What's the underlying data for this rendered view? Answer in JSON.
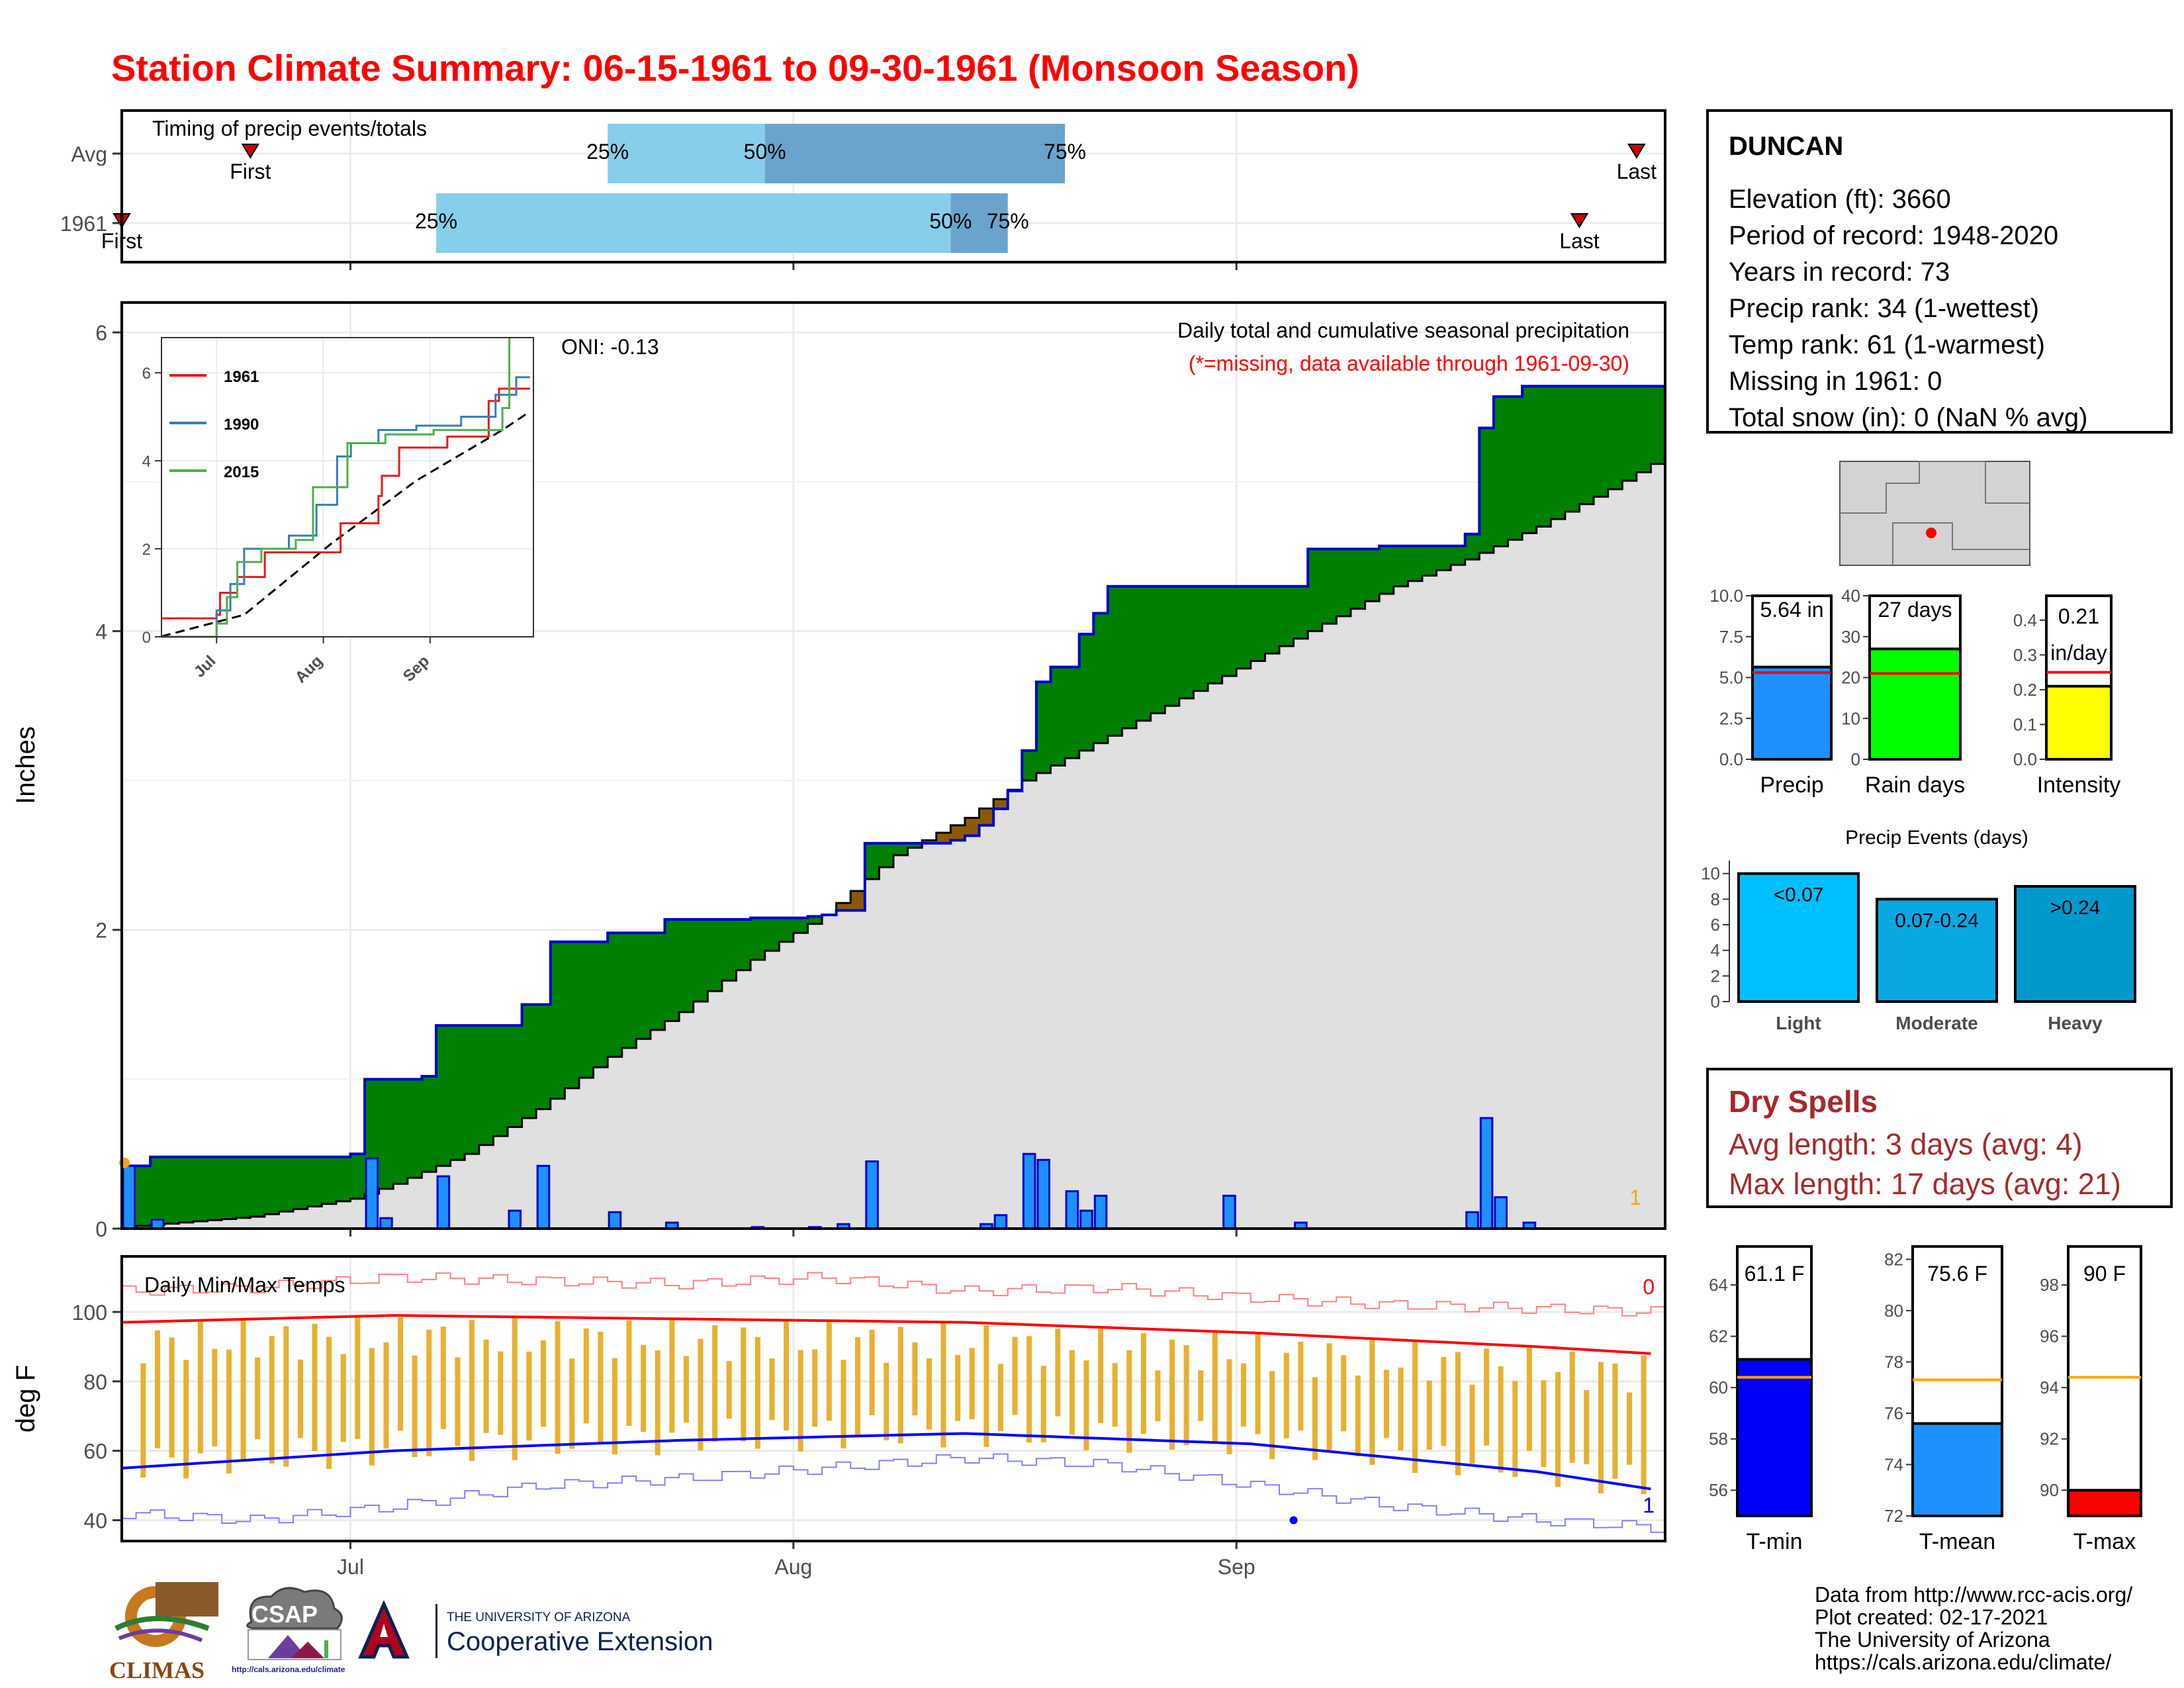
{
  "title": "Station Climate Summary: 06-15-1961 to 09-30-1961 (Monsoon Season)",
  "timing": {
    "label": "Timing of precip events/totals",
    "rows": [
      {
        "name": "Avg",
        "first": "First",
        "last": "Last",
        "p25": "25%",
        "p50": "50%",
        "p75": "75%"
      },
      {
        "name": "1961",
        "first": "First",
        "last": "Last",
        "p25": "25%",
        "p50": "50%",
        "p75": "75%"
      }
    ]
  },
  "main_plot": {
    "ylabel": "Inches",
    "title": "Daily total and cumulative seasonal precipitation",
    "subtitle": "(*=missing, data available through 1961-09-30)",
    "oni": "ONI: -0.13",
    "missing_count": "1"
  },
  "temp_plot": {
    "ylabel": "deg F",
    "label": "Daily Min/Max Temps",
    "count_top": "0",
    "count_bottom": "1"
  },
  "station": {
    "name": "DUNCAN",
    "lines": [
      "Elevation (ft): 3660",
      "Period of record: 1948-2020",
      "Years in record: 73",
      "Precip rank: 34 (1-wettest)",
      "Temp rank: 61 (1-warmest)",
      "Missing in 1961: 0",
      "Total snow (in): 0 (NaN % avg)"
    ]
  },
  "dry_spells": {
    "title": "Dry Spells",
    "avg_length": "Avg length: 3 days (avg: 4)",
    "max_length": "Max length: 17 days (avg: 21)"
  },
  "footer": {
    "lines": [
      "Data from http://www.rcc-acis.org/",
      "Plot created: 02-17-2021",
      "The University of Arizona",
      "https://cals.arizona.edu/climate/"
    ],
    "logos": {
      "climas": "CLIMAS",
      "csap": "CSAP",
      "csap_url": "http://cals.arizona.edu/climate",
      "ua_line1": "THE UNIVERSITY OF ARIZONA",
      "ua_line2": "Cooperative Extension"
    }
  },
  "colors": {
    "title": "#ff0000",
    "above_avg": "#008000",
    "below_avg": "#8b5a00",
    "avg_fill": "#e0e0e0",
    "daily_bar": "#1e90ff",
    "timing_light": "#87ceeb",
    "timing_dark": "#6aa4cc",
    "tmax": "#ff0000",
    "tmin": "#0000ff",
    "temp_bar": "#e8b030",
    "dry_spell": "#a52a2a"
  },
  "chart_data": [
    {
      "type": "timing",
      "id": "timing",
      "x_ticks": [
        "Jul",
        "Aug",
        "Sep"
      ],
      "rows": [
        {
          "name": "Avg",
          "first": "06-24",
          "p25": "07-19",
          "p50": "07-30",
          "p75": "08-20",
          "last": "09-29"
        },
        {
          "name": "1961",
          "first": "06-15",
          "p25": "07-07",
          "p50": "08-12",
          "p75": "08-16",
          "last": "09-25"
        }
      ]
    },
    {
      "type": "area",
      "id": "precip-main",
      "x_ticks": [
        "Jul",
        "Aug",
        "Sep"
      ],
      "y_ticks": [
        0,
        2,
        4,
        6
      ],
      "ylim": [
        0,
        6.2
      ],
      "cumulative_events": [
        {
          "day": 1,
          "value": 0.42
        },
        {
          "day": 3,
          "value": 0.48
        },
        {
          "day": 17,
          "value": 0.5
        },
        {
          "day": 18,
          "value": 1.0
        },
        {
          "day": 22,
          "value": 1.02
        },
        {
          "day": 23,
          "value": 1.36
        },
        {
          "day": 28,
          "value": 1.36
        },
        {
          "day": 29,
          "value": 1.5
        },
        {
          "day": 31,
          "value": 1.92
        },
        {
          "day": 35,
          "value": 1.98
        },
        {
          "day": 39,
          "value": 2.07
        },
        {
          "day": 45,
          "value": 2.08
        },
        {
          "day": 49,
          "value": 2.09
        },
        {
          "day": 50,
          "value": 2.1
        },
        {
          "day": 51,
          "value": 2.13
        },
        {
          "day": 53,
          "value": 2.58
        },
        {
          "day": 59,
          "value": 2.6
        },
        {
          "day": 60,
          "value": 2.63
        },
        {
          "day": 61,
          "value": 2.7
        },
        {
          "day": 62,
          "value": 2.81
        },
        {
          "day": 63,
          "value": 2.93
        },
        {
          "day": 64,
          "value": 3.2
        },
        {
          "day": 65,
          "value": 3.66
        },
        {
          "day": 66,
          "value": 3.76
        },
        {
          "day": 68,
          "value": 3.98
        },
        {
          "day": 69,
          "value": 4.12
        },
        {
          "day": 70,
          "value": 4.3
        },
        {
          "day": 84,
          "value": 4.55
        },
        {
          "day": 89,
          "value": 4.57
        },
        {
          "day": 95,
          "value": 4.65
        },
        {
          "day": 96,
          "value": 5.36
        },
        {
          "day": 97,
          "value": 5.57
        },
        {
          "day": 99,
          "value": 5.64
        },
        {
          "day": 108,
          "value": 5.64
        }
      ],
      "daily_precip": [
        {
          "day": 1,
          "value": 0.42
        },
        {
          "day": 3,
          "value": 0.06
        },
        {
          "day": 18,
          "value": 0.47
        },
        {
          "day": 19,
          "value": 0.07
        },
        {
          "day": 23,
          "value": 0.35
        },
        {
          "day": 28,
          "value": 0.12
        },
        {
          "day": 30,
          "value": 0.42
        },
        {
          "day": 35,
          "value": 0.11
        },
        {
          "day": 39,
          "value": 0.04
        },
        {
          "day": 45,
          "value": 0.01
        },
        {
          "day": 49,
          "value": 0.01
        },
        {
          "day": 51,
          "value": 0.03
        },
        {
          "day": 53,
          "value": 0.45
        },
        {
          "day": 61,
          "value": 0.03
        },
        {
          "day": 62,
          "value": 0.09
        },
        {
          "day": 64,
          "value": 0.5
        },
        {
          "day": 65,
          "value": 0.46
        },
        {
          "day": 67,
          "value": 0.25
        },
        {
          "day": 68,
          "value": 0.12
        },
        {
          "day": 69,
          "value": 0.22
        },
        {
          "day": 78,
          "value": 0.22
        },
        {
          "day": 83,
          "value": 0.04
        },
        {
          "day": 95,
          "value": 0.11
        },
        {
          "day": 96,
          "value": 0.74
        },
        {
          "day": 97,
          "value": 0.21
        },
        {
          "day": 99,
          "value": 0.04
        }
      ],
      "avg_cumulative": [
        {
          "day": 1,
          "value": 0.01
        },
        {
          "day": 10,
          "value": 0.08
        },
        {
          "day": 17,
          "value": 0.2
        },
        {
          "day": 20,
          "value": 0.3
        },
        {
          "day": 25,
          "value": 0.5
        },
        {
          "day": 30,
          "value": 0.8
        },
        {
          "day": 35,
          "value": 1.15
        },
        {
          "day": 40,
          "value": 1.45
        },
        {
          "day": 45,
          "value": 1.8
        },
        {
          "day": 50,
          "value": 2.1
        },
        {
          "day": 55,
          "value": 2.5
        },
        {
          "day": 60,
          "value": 2.75
        },
        {
          "day": 64,
          "value": 3.0
        },
        {
          "day": 70,
          "value": 3.3
        },
        {
          "day": 75,
          "value": 3.55
        },
        {
          "day": 80,
          "value": 3.8
        },
        {
          "day": 85,
          "value": 4.05
        },
        {
          "day": 90,
          "value": 4.3
        },
        {
          "day": 95,
          "value": 4.48
        },
        {
          "day": 100,
          "value": 4.7
        },
        {
          "day": 105,
          "value": 4.95
        },
        {
          "day": 108,
          "value": 5.12
        }
      ]
    },
    {
      "type": "line",
      "id": "precip-inset",
      "x_ticks": [
        "Jul",
        "Aug",
        "Sep"
      ],
      "y_ticks": [
        0,
        2,
        4,
        6
      ],
      "ylim": [
        0,
        6.8
      ],
      "series": [
        {
          "name": "1961",
          "color": "#e41a1c",
          "points": [
            [
              1,
              0.42
            ],
            [
              17,
              0.5
            ],
            [
              18,
              1.0
            ],
            [
              23,
              1.36
            ],
            [
              31,
              1.92
            ],
            [
              53,
              2.58
            ],
            [
              64,
              3.2
            ],
            [
              65,
              3.66
            ],
            [
              70,
              4.3
            ],
            [
              84,
              4.55
            ],
            [
              96,
              5.36
            ],
            [
              99,
              5.64
            ],
            [
              108,
              5.64
            ]
          ]
        },
        {
          "name": "1990",
          "color": "#377eb8",
          "points": [
            [
              1,
              0.0
            ],
            [
              15,
              0.0
            ],
            [
              17,
              0.6
            ],
            [
              21,
              1.2
            ],
            [
              25,
              2.0
            ],
            [
              38,
              2.3
            ],
            [
              46,
              3.0
            ],
            [
              52,
              4.1
            ],
            [
              56,
              4.4
            ],
            [
              64,
              4.7
            ],
            [
              75,
              4.8
            ],
            [
              88,
              5.0
            ],
            [
              98,
              5.5
            ],
            [
              104,
              5.9
            ],
            [
              108,
              5.9
            ]
          ]
        },
        {
          "name": "2015",
          "color": "#4daf4a",
          "points": [
            [
              1,
              0.0
            ],
            [
              17,
              0.3
            ],
            [
              20,
              0.9
            ],
            [
              23,
              1.7
            ],
            [
              30,
              2.0
            ],
            [
              40,
              2.2
            ],
            [
              45,
              3.4
            ],
            [
              55,
              4.4
            ],
            [
              66,
              4.6
            ],
            [
              80,
              4.7
            ],
            [
              92,
              4.7
            ],
            [
              100,
              5.2
            ],
            [
              102,
              6.8
            ]
          ]
        }
      ],
      "avg_series": [
        [
          1,
          0.01
        ],
        [
          25,
          0.5
        ],
        [
          50,
          2.1
        ],
        [
          75,
          3.55
        ],
        [
          100,
          4.7
        ],
        [
          108,
          5.12
        ]
      ]
    },
    {
      "type": "bar",
      "id": "temps",
      "x_ticks": [
        "Jul",
        "Aug",
        "Sep"
      ],
      "y_ticks": [
        40,
        60,
        80,
        100
      ],
      "ylim": [
        34,
        116
      ],
      "tmax_avg": [
        [
          1,
          97
        ],
        [
          20,
          99
        ],
        [
          40,
          98
        ],
        [
          60,
          97
        ],
        [
          80,
          94
        ],
        [
          100,
          90
        ],
        [
          108,
          88
        ]
      ],
      "tmin_avg": [
        [
          1,
          55
        ],
        [
          20,
          60
        ],
        [
          40,
          63
        ],
        [
          60,
          65
        ],
        [
          80,
          62
        ],
        [
          100,
          54
        ],
        [
          108,
          49
        ]
      ],
      "record_high": [
        [
          1,
          106
        ],
        [
          10,
          107
        ],
        [
          20,
          110
        ],
        [
          30,
          109
        ],
        [
          40,
          108
        ],
        [
          50,
          110
        ],
        [
          60,
          106
        ],
        [
          70,
          107
        ],
        [
          80,
          104
        ],
        [
          90,
          102
        ],
        [
          100,
          101
        ],
        [
          108,
          100
        ]
      ],
      "record_low": [
        [
          1,
          42
        ],
        [
          10,
          40
        ],
        [
          20,
          44
        ],
        [
          30,
          50
        ],
        [
          40,
          52
        ],
        [
          50,
          55
        ],
        [
          60,
          58
        ],
        [
          70,
          56
        ],
        [
          80,
          50
        ],
        [
          90,
          44
        ],
        [
          100,
          40
        ],
        [
          108,
          38
        ]
      ]
    },
    {
      "type": "bar",
      "id": "precip-total",
      "categories": [
        "Precip"
      ],
      "y_ticks": [
        0.0,
        2.5,
        5.0,
        7.5,
        10.0
      ],
      "ylim": [
        0,
        10.0
      ],
      "values": [
        5.64
      ],
      "avg": 5.3,
      "label": "5.64 in"
    },
    {
      "type": "bar",
      "id": "rain-days",
      "categories": [
        "Rain days"
      ],
      "y_ticks": [
        0,
        10,
        20,
        30,
        40
      ],
      "ylim": [
        0,
        40
      ],
      "values": [
        27
      ],
      "avg": 21,
      "label": "27 days"
    },
    {
      "type": "bar",
      "id": "intensity",
      "categories": [
        "Intensity"
      ],
      "y_ticks": [
        0.0,
        0.1,
        0.2,
        0.3,
        0.4
      ],
      "ylim": [
        0,
        0.47
      ],
      "values": [
        0.21
      ],
      "avg": 0.25,
      "label": "0.21",
      "label2": "in/day"
    },
    {
      "type": "bar",
      "id": "precip-events",
      "title": "Precip Events (days)",
      "categories": [
        "Light",
        "Moderate",
        "Heavy"
      ],
      "bar_labels": [
        "<0.07",
        "0.07-0.24",
        ">0.24"
      ],
      "values": [
        10,
        8,
        9
      ],
      "y_ticks": [
        0,
        2,
        4,
        6,
        8,
        10
      ],
      "ylim": [
        0,
        10.5
      ]
    },
    {
      "type": "bar",
      "id": "t-min",
      "categories": [
        "T-min"
      ],
      "y_ticks": [
        56,
        58,
        60,
        62,
        64
      ],
      "ylim": [
        55,
        65.5
      ],
      "values": [
        61.1
      ],
      "avg": 60.4,
      "label": "61.1 F"
    },
    {
      "type": "bar",
      "id": "t-mean",
      "categories": [
        "T-mean"
      ],
      "y_ticks": [
        72,
        74,
        76,
        78,
        80,
        82
      ],
      "ylim": [
        72,
        82.5
      ],
      "values": [
        75.6
      ],
      "avg": 77.3,
      "label": "75.6 F"
    },
    {
      "type": "bar",
      "id": "t-max",
      "categories": [
        "T-max"
      ],
      "y_ticks": [
        90,
        92,
        94,
        96,
        98
      ],
      "ylim": [
        89,
        99.5
      ],
      "values": [
        90
      ],
      "avg": 94.4,
      "label": "90 F"
    }
  ]
}
